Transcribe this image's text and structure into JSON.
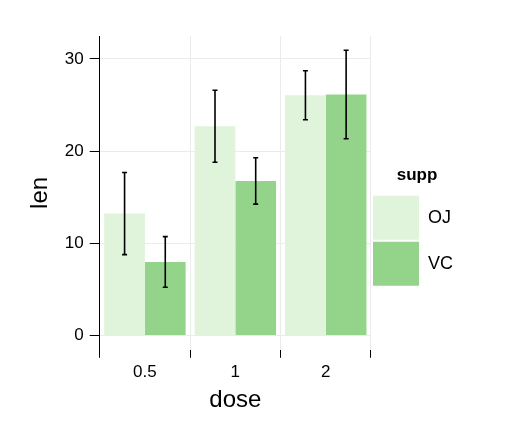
{
  "chart_data": {
    "type": "bar",
    "x_label": "dose",
    "y_label": "len",
    "categories": [
      "0.5",
      "1",
      "2"
    ],
    "series": [
      {
        "name": "OJ",
        "color": "#e0f3db",
        "values": [
          13.23,
          22.7,
          26.06
        ],
        "errors": [
          4.46,
          3.91,
          2.66
        ]
      },
      {
        "name": "VC",
        "color": "#94d48a",
        "values": [
          7.98,
          16.77,
          26.14
        ],
        "errors": [
          2.75,
          2.52,
          4.8
        ]
      }
    ],
    "legend_title": "supp",
    "legend": "right",
    "ylim": [
      -1.55,
      32.49
    ],
    "yticks": [
      0,
      10,
      20,
      30
    ],
    "grid": true
  }
}
